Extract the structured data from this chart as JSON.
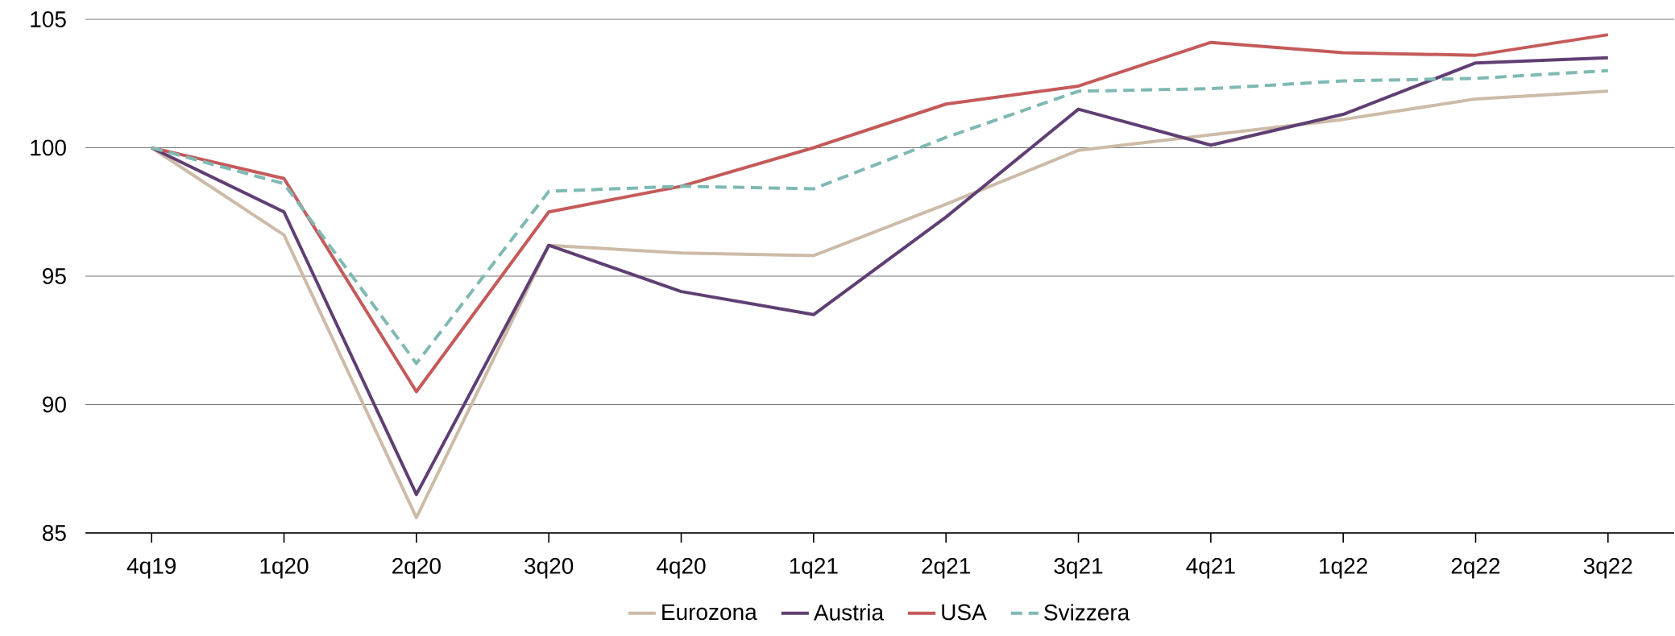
{
  "chart_data": {
    "type": "line",
    "categories": [
      "4q19",
      "1q20",
      "2q20",
      "3q20",
      "4q20",
      "1q21",
      "2q21",
      "3q21",
      "4q21",
      "1q22",
      "2q22",
      "3q22"
    ],
    "series": [
      {
        "name": "Eurozona",
        "color": "#cdbba8",
        "line_style": "solid",
        "values": [
          100,
          96.6,
          85.6,
          96.2,
          95.9,
          95.8,
          97.8,
          99.9,
          100.5,
          101.1,
          101.9,
          102.2
        ]
      },
      {
        "name": "Austria",
        "color": "#5f3f73",
        "line_style": "solid",
        "values": [
          100,
          97.5,
          86.5,
          96.2,
          94.4,
          93.5,
          97.3,
          101.5,
          100.1,
          101.3,
          103.3,
          103.5
        ]
      },
      {
        "name": "USA",
        "color": "#c55a5a",
        "line_style": "solid",
        "values": [
          100,
          98.8,
          90.5,
          97.5,
          98.5,
          100,
          101.7,
          102.4,
          104.1,
          103.7,
          103.6,
          104.4
        ]
      },
      {
        "name": "Svizzera",
        "color": "#7fb9b4",
        "line_style": "dashed",
        "values": [
          100,
          98.6,
          91.6,
          98.3,
          98.5,
          98.4,
          100.4,
          102.2,
          102.3,
          102.6,
          102.7,
          103.0
        ]
      }
    ],
    "ylim": [
      85,
      105
    ],
    "yticks": [
      85,
      90,
      95,
      100,
      105
    ],
    "grid": "y",
    "legend": "bottom",
    "marker": "none"
  }
}
